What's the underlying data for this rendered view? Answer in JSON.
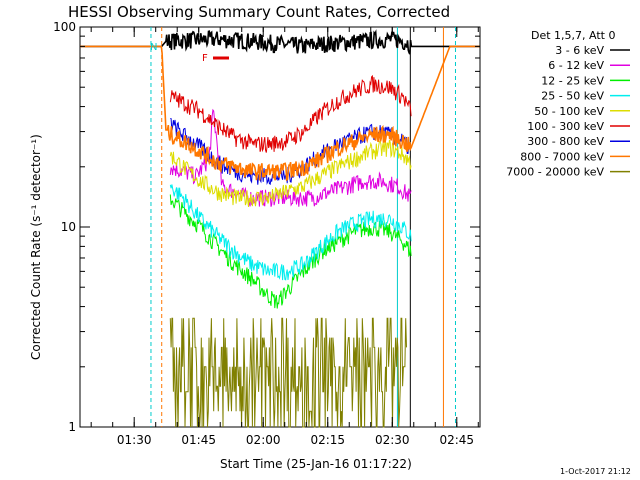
{
  "title": "HESSI Observing Summary Count Rates, Corrected",
  "xlabel": "Start Time (25-Jan-16 01:17:22)",
  "ylabel": "Corrected Count Rate (s⁻¹ detector⁻¹)",
  "footer": "1-Oct-2017 21:12",
  "legend_header": "Det 1,5,7, Att 0",
  "markers": {
    "night": "N",
    "flare": "F"
  },
  "chart_data": {
    "type": "line",
    "title": "HESSI Observing Summary Count Rates, Corrected",
    "xlabel": "Start Time (25-Jan-16 01:17:22)",
    "ylabel": "Corrected Count Rate (s⁻¹ detector⁻¹)",
    "x_unit": "minutes after 01:17:22",
    "xlim": [
      0,
      93
    ],
    "ylim": [
      1,
      100
    ],
    "yscale": "log",
    "x_ticks": [
      "01:30",
      "01:45",
      "02:00",
      "02:15",
      "02:30",
      "02:45"
    ],
    "x_tick_values": [
      12.6,
      27.6,
      42.6,
      57.6,
      72.6,
      87.6
    ],
    "y_ticks": [
      "1",
      "10",
      "100"
    ],
    "y_tick_values": [
      1,
      10,
      100
    ],
    "legend_position": "right, outside",
    "data_gaps": {
      "start": 20,
      "end": 77
    },
    "series": [
      {
        "name": "3 - 6 keV",
        "color": "#000000",
        "x": [
          0,
          19,
          20,
          25,
          32,
          40,
          45,
          52,
          55,
          62,
          68,
          72,
          74,
          76,
          77,
          86,
          93
        ],
        "y": [
          80,
          80,
          85,
          86,
          87,
          85,
          83,
          80,
          82,
          84,
          86,
          87,
          86,
          84,
          80,
          80,
          80
        ]
      },
      {
        "name": "6 - 12 keV",
        "color": "#e000e0",
        "x": [
          21,
          24,
          27,
          30,
          31,
          33,
          36,
          39,
          42,
          48,
          54,
          58,
          62,
          66,
          70,
          74,
          77
        ],
        "y": [
          20,
          19,
          18,
          22,
          38,
          16,
          15,
          14,
          14,
          14,
          14,
          15,
          16,
          17,
          17,
          16,
          14
        ]
      },
      {
        "name": "12 - 25 keV",
        "color": "#00ee00",
        "x": [
          21,
          24,
          28,
          32,
          36,
          40,
          44,
          46,
          48,
          52,
          56,
          60,
          64,
          68,
          72,
          75,
          77
        ],
        "y": [
          14,
          12,
          10,
          8,
          6.5,
          5.5,
          4.5,
          4.2,
          4.8,
          6,
          7.5,
          8.5,
          9.5,
          10,
          9.5,
          8.5,
          7.5
        ]
      },
      {
        "name": "25 - 50 keV",
        "color": "#00eeee",
        "x": [
          21,
          24,
          28,
          32,
          36,
          40,
          44,
          48,
          52,
          56,
          60,
          64,
          68,
          72,
          75,
          77
        ],
        "y": [
          16,
          14,
          11,
          9,
          7.5,
          6.5,
          6,
          6,
          6.5,
          8,
          9.5,
          10.5,
          11,
          11,
          10,
          9
        ]
      },
      {
        "name": "50 - 100 keV",
        "color": "#dddd00",
        "x": [
          21,
          24,
          28,
          32,
          36,
          40,
          44,
          48,
          52,
          56,
          60,
          64,
          68,
          72,
          75,
          77
        ],
        "y": [
          23,
          20,
          17,
          15,
          14,
          14,
          14,
          15,
          16,
          18,
          20,
          22,
          24,
          25,
          23,
          21
        ]
      },
      {
        "name": "100 - 300 keV",
        "color": "#e00000",
        "x": [
          21,
          24,
          28,
          32,
          36,
          40,
          44,
          48,
          52,
          56,
          60,
          64,
          68,
          72,
          75,
          77
        ],
        "y": [
          45,
          42,
          38,
          32,
          28,
          26,
          26,
          27,
          30,
          37,
          43,
          48,
          52,
          50,
          45,
          38
        ]
      },
      {
        "name": "300 - 800 keV",
        "color": "#0000e0",
        "x": [
          21,
          24,
          28,
          32,
          36,
          40,
          44,
          48,
          52,
          56,
          60,
          64,
          68,
          72,
          75,
          77
        ],
        "y": [
          33,
          29,
          25,
          21,
          19,
          18,
          18,
          18,
          20,
          23,
          26,
          28,
          30,
          29,
          27,
          24
        ]
      },
      {
        "name": "800 - 7000 keV",
        "color": "#ff7700",
        "x": [
          0,
          19,
          20,
          24,
          28,
          32,
          36,
          40,
          44,
          48,
          52,
          56,
          60,
          64,
          68,
          72,
          75,
          77,
          86,
          93
        ],
        "y": [
          80,
          80,
          30,
          27,
          24,
          21,
          20,
          19,
          19,
          19,
          20,
          22,
          25,
          27,
          29,
          29,
          27,
          25,
          80,
          80
        ]
      },
      {
        "name": "7000 - 20000 keV",
        "color": "#808000",
        "x": [
          21,
          24,
          27,
          30,
          33,
          36,
          40,
          44,
          48,
          52,
          55,
          58,
          61,
          64,
          67,
          70,
          73,
          76
        ],
        "y": [
          3.5,
          2.5,
          2,
          1.5,
          1.2,
          1,
          1,
          1,
          1,
          1,
          1.5,
          2,
          2,
          2,
          2,
          3,
          2,
          1.5
        ]
      }
    ]
  }
}
